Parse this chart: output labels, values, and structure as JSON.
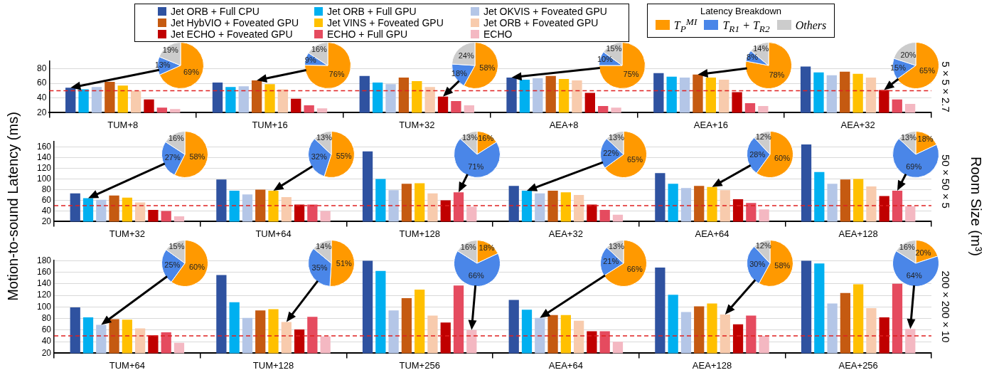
{
  "chart_data": [
    {
      "type": "bar",
      "categories": [
        "TUM+8",
        "TUM+16",
        "TUM+32",
        "AEA+8",
        "AEA+16",
        "AEA+32"
      ],
      "ylim": [
        20,
        90
      ],
      "yticks": [
        20,
        40,
        60,
        80
      ],
      "grid": "y",
      "legend": "top",
      "annotations": [
        "5 × 5 × 2.7"
      ],
      "ref_lines": [
        {
          "axis": "y",
          "value": 50,
          "color": "#e02020",
          "line_style": "dashed"
        }
      ],
      "series": [
        {
          "name": "Jet ORB + Full CPU",
          "color": "#2f52a0",
          "values": [
            54,
            61,
            70,
            68,
            74,
            83
          ]
        },
        {
          "name": "Jet ORB + Full GPU",
          "color": "#00b0f0",
          "values": [
            52,
            55,
            61,
            65,
            69,
            75
          ]
        },
        {
          "name": "Jet OKVIS + Foveated GPU",
          "color": "#b4c6e7",
          "values": [
            55,
            56,
            59,
            67,
            68,
            71
          ]
        },
        {
          "name": "Jet HybVIO + Foveated GPU",
          "color": "#c55a11",
          "values": [
            62,
            64,
            68,
            70,
            72,
            76
          ]
        },
        {
          "name": "Jet VINS + Foveated GPU",
          "color": "#ffc000",
          "values": [
            57,
            59,
            63,
            66,
            68,
            73
          ]
        },
        {
          "name": "Jet ORB + Foveated GPU",
          "color": "#f8cbad",
          "values": [
            50,
            52,
            55,
            64,
            65,
            68
          ]
        },
        {
          "name": "Jet ECHO + Foveated GPU",
          "color": "#c00000",
          "values": [
            38,
            39,
            42,
            47,
            48,
            51
          ]
        },
        {
          "name": "ECHO + Full GPU",
          "color": "#e54b5f",
          "values": [
            27,
            30,
            36,
            29,
            33,
            38
          ]
        },
        {
          "name": "ECHO",
          "color": "#f4b8c2",
          "values": [
            25,
            26,
            30,
            27,
            29,
            32
          ]
        }
      ]
    },
    {
      "type": "pie",
      "categories": [
        "T$_{P}$$^{MI}$",
        "T$_{R1}$ + T$_{R2}$",
        "Others"
      ],
      "values": [
        69,
        13,
        19
      ],
      "value_labels": [
        "69%",
        "13%",
        "19%"
      ],
      "colors": [
        "#ff9900",
        "#4a86e8",
        "#cccccc"
      ],
      "legend": "top right",
      "legend_title": "Latency Breakdown"
    },
    {
      "type": "pie",
      "values": [
        76,
        9,
        16
      ],
      "value_labels": [
        "76%",
        "9%",
        "16%"
      ],
      "colors": [
        "#ff9900",
        "#4a86e8",
        "#cccccc"
      ]
    },
    {
      "type": "pie",
      "values": [
        58,
        18,
        24
      ],
      "value_labels": [
        "58%",
        "18%",
        "24%"
      ],
      "colors": [
        "#ff9900",
        "#4a86e8",
        "#cccccc"
      ]
    },
    {
      "type": "pie",
      "values": [
        75,
        10,
        15
      ],
      "value_labels": [
        "75%",
        "10%",
        "15%"
      ],
      "colors": [
        "#ff9900",
        "#4a86e8",
        "#cccccc"
      ]
    },
    {
      "type": "pie",
      "values": [
        78,
        8,
        14
      ],
      "value_labels": [
        "78%",
        "8%",
        "14%"
      ],
      "colors": [
        "#ff9900",
        "#4a86e8",
        "#cccccc"
      ]
    },
    {
      "type": "pie",
      "values": [
        65,
        15,
        20
      ],
      "value_labels": [
        "65%",
        "15%",
        "20%"
      ],
      "colors": [
        "#ff9900",
        "#4a86e8",
        "#cccccc"
      ]
    },
    {
      "type": "bar",
      "categories": [
        "TUM+32",
        "TUM+64",
        "TUM+128",
        "AEA+32",
        "AEA+64",
        "AEA+128"
      ],
      "ylim": [
        20,
        170
      ],
      "yticks": [
        20,
        40,
        60,
        80,
        100,
        120,
        140,
        160
      ],
      "grid": "y",
      "ylabel": "Motion-to-sound Latency (ms)",
      "annotations": [
        "50 × 50 × 5",
        "Room Size (m³)"
      ],
      "ref_lines": [
        {
          "axis": "y",
          "value": 50,
          "color": "#e02020",
          "line_style": "dashed"
        }
      ],
      "series": [
        {
          "color": "#2f52a0",
          "values": [
            73,
            99,
            152,
            87,
            111,
            165
          ]
        },
        {
          "color": "#00b0f0",
          "values": [
            64,
            78,
            100,
            78,
            91,
            113
          ]
        },
        {
          "color": "#b4c6e7",
          "values": [
            61,
            71,
            79,
            73,
            83,
            91
          ]
        },
        {
          "color": "#c55a11",
          "values": [
            69,
            80,
            91,
            78,
            87,
            99
          ]
        },
        {
          "color": "#ffc000",
          "values": [
            65,
            78,
            92,
            75,
            85,
            100
          ]
        },
        {
          "color": "#f8cbad",
          "values": [
            56,
            66,
            73,
            70,
            79,
            86
          ]
        },
        {
          "color": "#c00000",
          "values": [
            42,
            52,
            60,
            52,
            62,
            68
          ]
        },
        {
          "color": "#e54b5f",
          "values": [
            40,
            52,
            75,
            42,
            55,
            78
          ]
        },
        {
          "color": "#f4b8c2",
          "values": [
            30,
            40,
            48,
            33,
            43,
            49
          ]
        }
      ]
    },
    {
      "type": "pie",
      "values": [
        58,
        27,
        16
      ],
      "value_labels": [
        "58%",
        "27%",
        "16%"
      ],
      "colors": [
        "#ff9900",
        "#4a86e8",
        "#cccccc"
      ]
    },
    {
      "type": "pie",
      "values": [
        55,
        32,
        13
      ],
      "value_labels": [
        "55%",
        "32%",
        "13%"
      ],
      "colors": [
        "#ff9900",
        "#4a86e8",
        "#cccccc"
      ]
    },
    {
      "type": "pie",
      "values": [
        16,
        71,
        13
      ],
      "value_labels": [
        "16%",
        "71%",
        "13%"
      ],
      "colors": [
        "#ff9900",
        "#4a86e8",
        "#cccccc"
      ]
    },
    {
      "type": "pie",
      "values": [
        65,
        22,
        13
      ],
      "value_labels": [
        "65%",
        "22%",
        "13%"
      ],
      "colors": [
        "#ff9900",
        "#4a86e8",
        "#cccccc"
      ]
    },
    {
      "type": "pie",
      "values": [
        60,
        28,
        12
      ],
      "value_labels": [
        "60%",
        "28%",
        "12%"
      ],
      "colors": [
        "#ff9900",
        "#4a86e8",
        "#cccccc"
      ]
    },
    {
      "type": "pie",
      "values": [
        18,
        69,
        13
      ],
      "value_labels": [
        "18%",
        "69%",
        "13%"
      ],
      "colors": [
        "#ff9900",
        "#4a86e8",
        "#cccccc"
      ]
    },
    {
      "type": "bar",
      "categories": [
        "TUM+64",
        "TUM+128",
        "TUM+256",
        "AEA+64",
        "AEA+128",
        "AEA+256"
      ],
      "ylim": [
        20,
        180
      ],
      "yticks": [
        20,
        40,
        60,
        80,
        100,
        120,
        140,
        160,
        180
      ],
      "grid": "y",
      "annotations": [
        "200 × 200 × 10"
      ],
      "ref_lines": [
        {
          "axis": "y",
          "value": 50,
          "color": "#e02020",
          "line_style": "dashed"
        }
      ],
      "series": [
        {
          "color": "#2f52a0",
          "values": [
            99,
            155,
            180,
            112,
            168,
            180
          ]
        },
        {
          "color": "#00b0f0",
          "values": [
            82,
            108,
            162,
            95,
            121,
            175
          ]
        },
        {
          "color": "#b4c6e7",
          "values": [
            69,
            81,
            94,
            81,
            91,
            106
          ]
        },
        {
          "color": "#c55a11",
          "values": [
            79,
            94,
            115,
            86,
            101,
            124
          ]
        },
        {
          "color": "#ffc000",
          "values": [
            78,
            96,
            130,
            86,
            106,
            139
          ]
        },
        {
          "color": "#f8cbad",
          "values": [
            63,
            74,
            85,
            76,
            87,
            98
          ]
        },
        {
          "color": "#c00000",
          "values": [
            51,
            61,
            73,
            58,
            70,
            82
          ]
        },
        {
          "color": "#e54b5f",
          "values": [
            56,
            83,
            137,
            58,
            85,
            140
          ]
        },
        {
          "color": "#f4b8c2",
          "values": [
            38,
            49,
            60,
            40,
            50,
            62
          ]
        }
      ]
    },
    {
      "type": "pie",
      "values": [
        60,
        25,
        15
      ],
      "value_labels": [
        "60%",
        "25%",
        "15%"
      ],
      "colors": [
        "#ff9900",
        "#4a86e8",
        "#cccccc"
      ]
    },
    {
      "type": "pie",
      "values": [
        51,
        35,
        14
      ],
      "value_labels": [
        "51%",
        "35%",
        "14%"
      ],
      "colors": [
        "#ff9900",
        "#4a86e8",
        "#cccccc"
      ]
    },
    {
      "type": "pie",
      "values": [
        18,
        66,
        16
      ],
      "value_labels": [
        "18%",
        "66%",
        "16%"
      ],
      "colors": [
        "#ff9900",
        "#4a86e8",
        "#cccccc"
      ]
    },
    {
      "type": "pie",
      "values": [
        66,
        21,
        13
      ],
      "value_labels": [
        "66%",
        "21%",
        "13%"
      ],
      "colors": [
        "#ff9900",
        "#4a86e8",
        "#cccccc"
      ]
    },
    {
      "type": "pie",
      "values": [
        58,
        30,
        12
      ],
      "value_labels": [
        "58%",
        "30%",
        "12%"
      ],
      "colors": [
        "#ff9900",
        "#4a86e8",
        "#cccccc"
      ]
    },
    {
      "type": "pie",
      "values": [
        20,
        64,
        16
      ],
      "value_labels": [
        "20%",
        "64%",
        "16%"
      ],
      "colors": [
        "#ff9900",
        "#4a86e8",
        "#cccccc"
      ]
    }
  ]
}
